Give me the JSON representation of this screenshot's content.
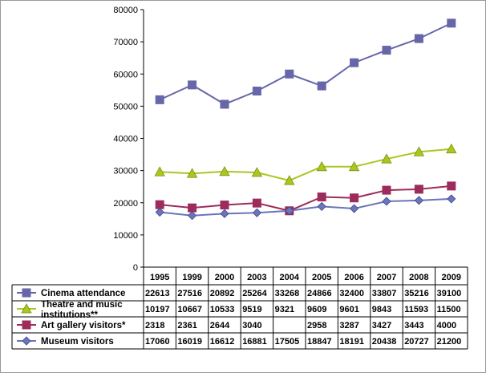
{
  "chart_data": {
    "type": "line",
    "categories": [
      "1995",
      "1999",
      "2000",
      "2003",
      "2004",
      "2005",
      "2006",
      "2007",
      "2008",
      "2009"
    ],
    "ylim": [
      0,
      80000
    ],
    "yticks": [
      0,
      10000,
      20000,
      30000,
      40000,
      50000,
      60000,
      70000,
      80000
    ],
    "grid": false,
    "legend": "bottom data table",
    "series": [
      {
        "name": "Cinema attendance",
        "color": "#6666a8",
        "marker": "square",
        "table_values": [
          "22613",
          "27516",
          "20892",
          "25264",
          "33268",
          "24866",
          "32400",
          "33807",
          "35216",
          "39100"
        ],
        "plotted_values": [
          52000,
          56600,
          50600,
          54700,
          60000,
          56300,
          63500,
          67400,
          71000,
          75800
        ]
      },
      {
        "name": "Theatre and music institutions**",
        "color": "#a8c820",
        "marker": "triangle",
        "table_values": [
          "10197",
          "10667",
          "10533",
          "9519",
          "9321",
          "9609",
          "9601",
          "9843",
          "11593",
          "11500"
        ],
        "plotted_values": [
          29600,
          29100,
          29700,
          29400,
          26900,
          31200,
          31200,
          33600,
          35800,
          36700
        ]
      },
      {
        "name": "Art gallery visitors*",
        "color": "#9c2c5c",
        "marker": "square",
        "table_values": [
          "2318",
          "2361",
          "2644",
          "3040",
          "",
          "2958",
          "3287",
          "3427",
          "3443",
          "4000"
        ],
        "plotted_values": [
          19400,
          18400,
          19300,
          19900,
          17500,
          21800,
          21500,
          23900,
          24200,
          25200
        ]
      },
      {
        "name": "Museum visitors",
        "color": "#6b75b8",
        "marker": "diamond",
        "table_values": [
          "17060",
          "16019",
          "16612",
          "16881",
          "17505",
          "18847",
          "18191",
          "20438",
          "20727",
          "21200"
        ],
        "plotted_values": [
          17060,
          16019,
          16612,
          16881,
          17505,
          18847,
          18191,
          20438,
          20727,
          21200
        ]
      }
    ]
  }
}
